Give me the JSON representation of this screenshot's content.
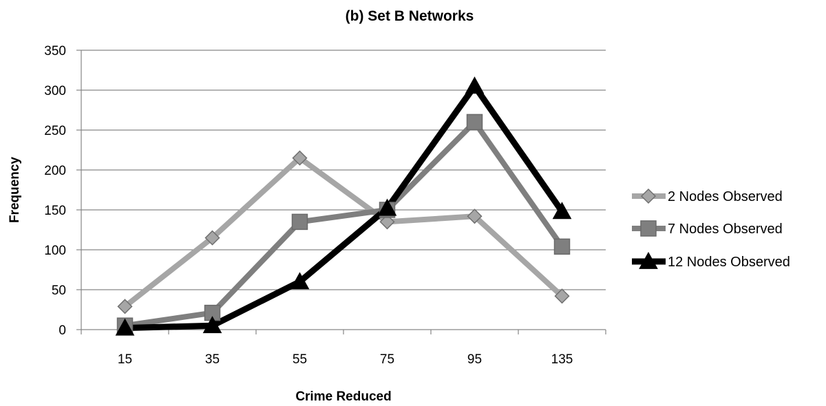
{
  "chart_data": {
    "type": "line",
    "title": "(b) Set B Networks",
    "xlabel": "Crime Reduced",
    "ylabel": "Frequency",
    "categories": [
      "15",
      "35",
      "55",
      "75",
      "95",
      "135"
    ],
    "ylim": [
      0,
      350
    ],
    "yticks": [
      0,
      50,
      100,
      150,
      200,
      250,
      300,
      350
    ],
    "grid": "horizontal",
    "legend_position": "right",
    "series": [
      {
        "name": "2 Nodes Observed",
        "values": [
          29,
          115,
          215,
          135,
          142,
          42
        ],
        "color": "#a6a6a6",
        "marker": "diamond"
      },
      {
        "name": "7 Nodes Observed",
        "values": [
          5,
          21,
          135,
          150,
          260,
          104
        ],
        "color": "#7f7f7f",
        "marker": "square"
      },
      {
        "name": "12 Nodes Observed",
        "values": [
          2,
          5,
          60,
          152,
          305,
          148
        ],
        "color": "#000000",
        "marker": "triangle"
      }
    ]
  }
}
